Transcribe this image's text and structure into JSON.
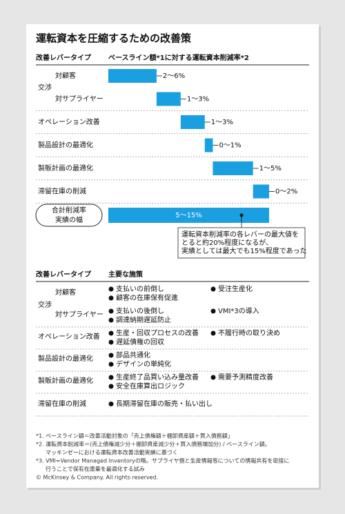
{
  "title": "運転資本を圧縮するための改善策",
  "chart_data": {
    "type": "bar",
    "lever_header": "改善レバータイプ",
    "value_header": "ベースライン額*1に対する運転資本削減率*2",
    "color": "#1a9fe0",
    "groups": [
      {
        "name": "交渉",
        "categories": [
          "対顧客",
          "対サプライヤー"
        ],
        "values": [
          6,
          3
        ],
        "value_labels": [
          "2～6%",
          "1～3%"
        ]
      },
      {
        "categories": [
          "オペレーション改善"
        ],
        "values": [
          3
        ],
        "value_labels": [
          "1～3%"
        ]
      },
      {
        "categories": [
          "製品設計の最適化"
        ],
        "values": [
          1
        ],
        "value_labels": [
          "0～1%"
        ]
      },
      {
        "categories": [
          "製販計画の最適化"
        ],
        "values": [
          5
        ],
        "value_labels": [
          "1～5%"
        ]
      },
      {
        "categories": [
          "滞留在庫の削減"
        ],
        "values": [
          2
        ],
        "value_labels": [
          "0～2%"
        ]
      }
    ],
    "total": {
      "label_lines": [
        "合計削減率",
        "実績の幅"
      ],
      "value_label": "5～15%"
    },
    "annotation_lines": [
      "運転資本削減率の各レバーの最大値を",
      "とると約20%程度になるが、",
      "実績としては最大でも15%程度であった"
    ]
  },
  "table": {
    "headers": [
      "改善レバータイプ",
      "主要な施策"
    ],
    "rows": [
      {
        "name": "交渉",
        "subrows": [
          {
            "name": "対顧客",
            "items": [
              "支払いの前倒し",
              "受注生産化",
              "顧客の在庫保有促進"
            ]
          },
          {
            "name": "対サプライヤー",
            "items": [
              "支払いの後倒し",
              "VMI*3の導入",
              "調達納期遅延防止"
            ]
          }
        ]
      },
      {
        "name": "オペレーション改善",
        "items": [
          "生産・回収プロセスの改善",
          "不履行時の取り決め",
          "遅延債権の回収"
        ]
      },
      {
        "name": "製品設計の最適化",
        "items": [
          "部品共通化",
          "デザインの単純化"
        ]
      },
      {
        "name": "製販計画の最適化",
        "items": [
          "生産終了品買い込み量改善",
          "需要予測精度改善",
          "安全在庫算出ロジック"
        ]
      },
      {
        "name": "滞留在庫の削減",
        "items": [
          "長期滞留在庫の販売・払い出し"
        ]
      }
    ]
  },
  "footnotes": [
    [
      "*1. ベースライン額＝改善活動対象の「売上債権額＋棚卸資産額＋買入債務額」"
    ],
    [
      "*2. 運転資本削減率＝(売上債権減少分＋棚卸資産減少分＋買入債務増加分) / ベースライン額。",
      "マッキンゼーにおける運転資本改善活動実績に基づく"
    ],
    [
      "*3. VMI=Vendor Managed Inventoryの略。サプライヤ側と生産情報等についての情報共有を密接に",
      "行うことで保有在庫量を最適化する試み"
    ],
    [
      "© McKinsey & Company. All rights reserved."
    ]
  ]
}
